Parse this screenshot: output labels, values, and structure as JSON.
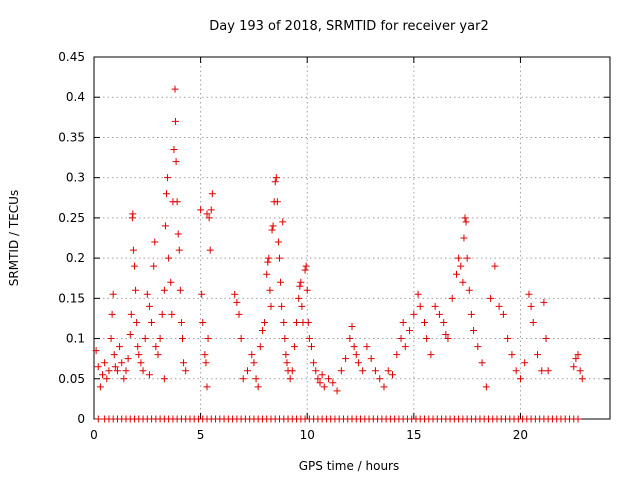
{
  "chart_data": {
    "type": "scatter",
    "title": "Day 193 of 2018, SRMTID for receiver yar2",
    "xlabel": "GPS time / hours",
    "ylabel": "SRMTID / TECUs",
    "xlim": [
      0,
      24.2
    ],
    "ylim": [
      0,
      0.45
    ],
    "x_ticks": [
      0,
      5,
      10,
      15,
      20
    ],
    "x_tick_labels": [
      "0",
      "5",
      "10",
      "15",
      "20"
    ],
    "y_ticks": [
      0,
      0.05,
      0.1,
      0.15,
      0.2,
      0.25,
      0.3,
      0.35,
      0.4,
      0.45
    ],
    "y_tick_labels": [
      "0",
      "0.05",
      "0.1",
      "0.15",
      "0.2",
      "0.25",
      "0.3",
      "0.35",
      "0.4",
      "0.45"
    ],
    "grid": true,
    "marker": "plus",
    "series": [
      {
        "name": "SRMTID",
        "color": "#e00000",
        "points": [
          [
            0.1,
            0.085
          ],
          [
            0.2,
            0.065
          ],
          [
            0.3,
            0.04
          ],
          [
            0.4,
            0.055
          ],
          [
            0.5,
            0.07
          ],
          [
            0.6,
            0.05
          ],
          [
            0.7,
            0.06
          ],
          [
            0.8,
            0.1
          ],
          [
            0.85,
            0.13
          ],
          [
            0.9,
            0.155
          ],
          [
            0.95,
            0.08
          ],
          [
            1.0,
            0.065
          ],
          [
            1.1,
            0.06
          ],
          [
            1.2,
            0.09
          ],
          [
            1.3,
            0.07
          ],
          [
            1.4,
            0.05
          ],
          [
            1.5,
            0.06
          ],
          [
            1.6,
            0.075
          ],
          [
            1.7,
            0.105
          ],
          [
            1.75,
            0.13
          ],
          [
            1.8,
            0.25
          ],
          [
            1.82,
            0.255
          ],
          [
            1.85,
            0.21
          ],
          [
            1.9,
            0.19
          ],
          [
            1.95,
            0.16
          ],
          [
            2.0,
            0.12
          ],
          [
            2.05,
            0.09
          ],
          [
            2.1,
            0.08
          ],
          [
            2.2,
            0.07
          ],
          [
            2.3,
            0.06
          ],
          [
            2.4,
            0.1
          ],
          [
            2.5,
            0.155
          ],
          [
            2.6,
            0.14
          ],
          [
            2.7,
            0.12
          ],
          [
            2.8,
            0.19
          ],
          [
            2.85,
            0.22
          ],
          [
            2.9,
            0.09
          ],
          [
            3.0,
            0.08
          ],
          [
            3.1,
            0.1
          ],
          [
            3.2,
            0.13
          ],
          [
            3.3,
            0.16
          ],
          [
            3.35,
            0.24
          ],
          [
            3.4,
            0.28
          ],
          [
            3.45,
            0.3
          ],
          [
            3.5,
            0.2
          ],
          [
            3.6,
            0.17
          ],
          [
            3.65,
            0.13
          ],
          [
            3.7,
            0.27
          ],
          [
            3.75,
            0.335
          ],
          [
            3.8,
            0.41
          ],
          [
            3.82,
            0.37
          ],
          [
            3.85,
            0.32
          ],
          [
            3.9,
            0.27
          ],
          [
            3.95,
            0.23
          ],
          [
            4.0,
            0.21
          ],
          [
            4.05,
            0.16
          ],
          [
            4.1,
            0.12
          ],
          [
            4.15,
            0.1
          ],
          [
            4.2,
            0.07
          ],
          [
            4.3,
            0.06
          ],
          [
            3.3,
            0.05
          ],
          [
            2.6,
            0.055
          ],
          [
            5.0,
            0.26
          ],
          [
            5.05,
            0.155
          ],
          [
            5.1,
            0.12
          ],
          [
            5.2,
            0.08
          ],
          [
            5.25,
            0.07
          ],
          [
            5.3,
            0.04
          ],
          [
            5.35,
            0.1
          ],
          [
            5.4,
            0.25
          ],
          [
            5.45,
            0.21
          ],
          [
            5.5,
            0.26
          ],
          [
            5.55,
            0.28
          ],
          [
            5.3,
            0.255
          ],
          [
            6.6,
            0.155
          ],
          [
            6.7,
            0.145
          ],
          [
            6.8,
            0.13
          ],
          [
            6.9,
            0.1
          ],
          [
            7.0,
            0.05
          ],
          [
            7.2,
            0.06
          ],
          [
            7.4,
            0.08
          ],
          [
            7.5,
            0.07
          ],
          [
            7.6,
            0.05
          ],
          [
            7.7,
            0.04
          ],
          [
            7.8,
            0.09
          ],
          [
            7.9,
            0.11
          ],
          [
            8.0,
            0.12
          ],
          [
            8.1,
            0.18
          ],
          [
            8.15,
            0.195
          ],
          [
            8.2,
            0.2
          ],
          [
            8.25,
            0.16
          ],
          [
            8.3,
            0.14
          ],
          [
            8.35,
            0.235
          ],
          [
            8.4,
            0.24
          ],
          [
            8.45,
            0.27
          ],
          [
            8.5,
            0.295
          ],
          [
            8.55,
            0.3
          ],
          [
            8.6,
            0.27
          ],
          [
            8.65,
            0.22
          ],
          [
            8.7,
            0.2
          ],
          [
            8.75,
            0.17
          ],
          [
            8.8,
            0.14
          ],
          [
            8.85,
            0.245
          ],
          [
            8.9,
            0.12
          ],
          [
            8.95,
            0.1
          ],
          [
            9.0,
            0.08
          ],
          [
            9.05,
            0.07
          ],
          [
            9.1,
            0.06
          ],
          [
            9.2,
            0.05
          ],
          [
            9.3,
            0.06
          ],
          [
            9.4,
            0.09
          ],
          [
            9.5,
            0.12
          ],
          [
            9.6,
            0.15
          ],
          [
            9.65,
            0.165
          ],
          [
            9.7,
            0.17
          ],
          [
            9.75,
            0.14
          ],
          [
            9.8,
            0.12
          ],
          [
            9.9,
            0.185
          ],
          [
            9.95,
            0.19
          ],
          [
            10.0,
            0.16
          ],
          [
            10.05,
            0.12
          ],
          [
            10.1,
            0.1
          ],
          [
            10.2,
            0.09
          ],
          [
            10.3,
            0.07
          ],
          [
            10.4,
            0.06
          ],
          [
            10.5,
            0.05
          ],
          [
            10.6,
            0.045
          ],
          [
            10.7,
            0.055
          ],
          [
            10.8,
            0.04
          ],
          [
            11.0,
            0.05
          ],
          [
            11.2,
            0.045
          ],
          [
            11.4,
            0.035
          ],
          [
            11.6,
            0.06
          ],
          [
            11.8,
            0.075
          ],
          [
            12.0,
            0.1
          ],
          [
            12.1,
            0.115
          ],
          [
            12.2,
            0.09
          ],
          [
            12.3,
            0.08
          ],
          [
            12.4,
            0.07
          ],
          [
            12.6,
            0.06
          ],
          [
            12.8,
            0.09
          ],
          [
            13.0,
            0.075
          ],
          [
            13.2,
            0.06
          ],
          [
            13.4,
            0.05
          ],
          [
            13.6,
            0.04
          ],
          [
            13.8,
            0.06
          ],
          [
            14.0,
            0.055
          ],
          [
            14.2,
            0.08
          ],
          [
            14.4,
            0.1
          ],
          [
            14.5,
            0.12
          ],
          [
            14.6,
            0.09
          ],
          [
            14.8,
            0.11
          ],
          [
            15.0,
            0.13
          ],
          [
            15.2,
            0.155
          ],
          [
            15.3,
            0.14
          ],
          [
            15.5,
            0.12
          ],
          [
            15.6,
            0.1
          ],
          [
            15.8,
            0.08
          ],
          [
            16.0,
            0.14
          ],
          [
            16.2,
            0.13
          ],
          [
            16.4,
            0.12
          ],
          [
            16.5,
            0.105
          ],
          [
            16.6,
            0.1
          ],
          [
            16.8,
            0.15
          ],
          [
            17.0,
            0.18
          ],
          [
            17.1,
            0.2
          ],
          [
            17.2,
            0.19
          ],
          [
            17.3,
            0.17
          ],
          [
            17.35,
            0.225
          ],
          [
            17.4,
            0.25
          ],
          [
            17.45,
            0.245
          ],
          [
            17.5,
            0.2
          ],
          [
            17.6,
            0.16
          ],
          [
            17.7,
            0.13
          ],
          [
            17.8,
            0.11
          ],
          [
            18.0,
            0.09
          ],
          [
            18.2,
            0.07
          ],
          [
            18.4,
            0.04
          ],
          [
            18.6,
            0.15
          ],
          [
            18.8,
            0.19
          ],
          [
            19.0,
            0.14
          ],
          [
            19.2,
            0.13
          ],
          [
            19.4,
            0.1
          ],
          [
            19.6,
            0.08
          ],
          [
            19.8,
            0.06
          ],
          [
            20.0,
            0.05
          ],
          [
            20.2,
            0.07
          ],
          [
            20.4,
            0.155
          ],
          [
            20.5,
            0.14
          ],
          [
            20.6,
            0.12
          ],
          [
            20.8,
            0.08
          ],
          [
            21.0,
            0.06
          ],
          [
            21.1,
            0.145
          ],
          [
            21.2,
            0.1
          ],
          [
            21.3,
            0.06
          ],
          [
            22.5,
            0.065
          ],
          [
            22.6,
            0.075
          ],
          [
            22.7,
            0.08
          ],
          [
            22.8,
            0.06
          ],
          [
            22.9,
            0.05
          ]
        ]
      }
    ],
    "zero_level_points_x": [
      0.2,
      0.5,
      0.7,
      0.9,
      1.1,
      1.3,
      1.5,
      1.7,
      1.9,
      2.1,
      2.3,
      2.5,
      2.7,
      2.9,
      3.1,
      3.3,
      3.5,
      3.7,
      3.9,
      4.1,
      4.3,
      4.5,
      4.7,
      4.9,
      5.1,
      5.3,
      5.5,
      5.7,
      5.9,
      6.1,
      6.3,
      6.5,
      6.7,
      6.9,
      7.1,
      7.3,
      7.5,
      7.7,
      7.9,
      8.1,
      8.3,
      8.5,
      8.7,
      8.9,
      9.1,
      9.3,
      9.5,
      9.7,
      9.9,
      10.1,
      10.3,
      10.5,
      10.7,
      10.9,
      11.1,
      11.3,
      11.5,
      11.7,
      11.9,
      12.1,
      12.3,
      12.5,
      12.7,
      12.9,
      13.1,
      13.3,
      13.5,
      13.7,
      13.9,
      14.1,
      14.3,
      14.5,
      14.7,
      14.9,
      15.1,
      15.3,
      15.5,
      15.7,
      15.9,
      16.1,
      16.3,
      16.5,
      16.7,
      16.9,
      17.1,
      17.3,
      17.5,
      17.7,
      17.9,
      18.1,
      18.3,
      18.5,
      18.7,
      18.9,
      19.1,
      19.3,
      19.5,
      19.7,
      19.9,
      20.1,
      20.3,
      20.5,
      20.7,
      20.9,
      21.1,
      21.3,
      21.5,
      21.7,
      21.9,
      22.1,
      22.3,
      22.5,
      22.7
    ]
  }
}
